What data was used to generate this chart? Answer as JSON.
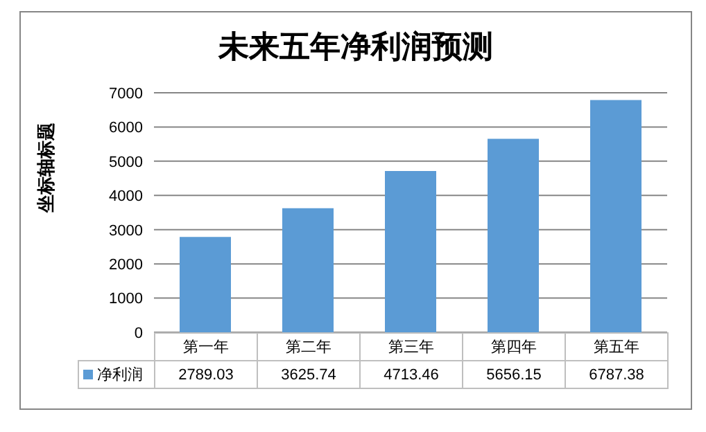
{
  "chart_data": {
    "type": "bar",
    "title": "未来五年净利润预测",
    "ylabel": "坐标轴标题",
    "categories": [
      "第一年",
      "第二年",
      "第三年",
      "第四年",
      "第五年"
    ],
    "series": [
      {
        "name": "净利润",
        "color": "#5b9bd5",
        "values": [
          2789.03,
          3625.74,
          4713.46,
          5656.15,
          6787.38
        ]
      }
    ],
    "ylim": [
      0,
      7000
    ],
    "yticks": [
      0,
      1000,
      2000,
      3000,
      4000,
      5000,
      6000,
      7000
    ],
    "grid": "y",
    "legend": "bottom",
    "data_labels": true
  }
}
